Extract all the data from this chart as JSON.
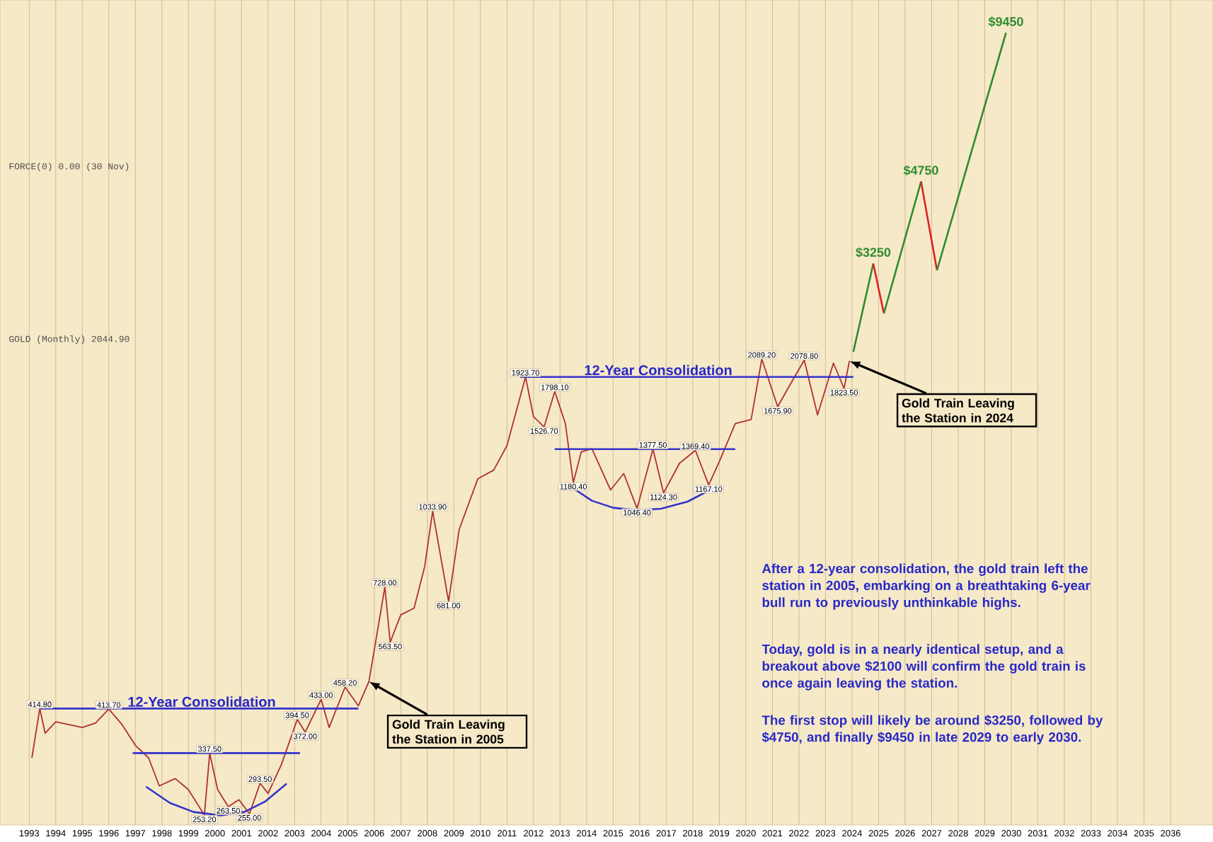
{
  "chart_data": {
    "type": "line",
    "log": true,
    "grid": "x",
    "tick_labels": "x",
    "xlim": [
      1991.9,
      2037.6
    ],
    "ylim": [
      242,
      11000
    ],
    "xticks": [
      1993,
      1994,
      1995,
      1996,
      1997,
      1998,
      1999,
      2000,
      2001,
      2002,
      2003,
      2004,
      2005,
      2006,
      2007,
      2008,
      2009,
      2010,
      2011,
      2012,
      2013,
      2014,
      2015,
      2016,
      2017,
      2018,
      2019,
      2020,
      2021,
      2022,
      2023,
      2024,
      2025,
      2026,
      2027,
      2028,
      2029,
      2030,
      2031,
      2032,
      2033,
      2034,
      2035,
      2036
    ],
    "series": [
      {
        "type": "line",
        "color": "#b03030",
        "x": [
          1993.1,
          1993.4,
          1993.6,
          1994.0,
          1994.5,
          1995.0,
          1995.5,
          1996.0,
          1996.5,
          1997.0,
          1997.5,
          1997.9,
          1998.5,
          1999.0,
          1999.6,
          1999.8,
          2000.1,
          2000.5,
          2000.9,
          2001.3,
          2001.7,
          2002.0,
          2002.5,
          2003.1,
          2003.4,
          2004.0,
          2004.3,
          2004.9,
          2005.4,
          2005.8,
          2006.4,
          2006.6,
          2007.0,
          2007.5,
          2007.9,
          2008.2,
          2008.8,
          2009.2,
          2009.9,
          2010.5,
          2011.0,
          2011.7,
          2012.0,
          2012.4,
          2012.8,
          2013.2,
          2013.5,
          2013.8,
          2014.2,
          2014.9,
          2015.4,
          2015.9,
          2016.5,
          2016.9,
          2017.5,
          2018.1,
          2018.6,
          2019.0,
          2019.6,
          2020.2,
          2020.6,
          2021.2,
          2021.6,
          2022.2,
          2022.7,
          2023.3,
          2023.7,
          2023.9
        ],
        "values": [
          330,
          414.8,
          370,
          390,
          385,
          380,
          388,
          413.7,
          385,
          350,
          330,
          290,
          300,
          285,
          253.2,
          337.5,
          285,
          263.5,
          272,
          255.0,
          293.5,
          280,
          320,
          394.5,
          372.0,
          433.0,
          380,
          458.2,
          420,
          470,
          728.0,
          563.5,
          640,
          660,
          800,
          1033.9,
          681.0,
          950,
          1200,
          1250,
          1400,
          1923.7,
          1600,
          1526.7,
          1798.1,
          1550,
          1180.4,
          1360,
          1380,
          1140,
          1230,
          1046.4,
          1377.5,
          1124.3,
          1290,
          1369.4,
          1167.1,
          1300,
          1550,
          1580,
          2089.2,
          1675.9,
          1830,
          2078.8,
          1614,
          2050,
          1823.5,
          2070
        ],
        "value_labels": [
          null,
          "414.80",
          null,
          null,
          null,
          null,
          null,
          "413.70",
          null,
          null,
          null,
          null,
          null,
          null,
          "253.20",
          "337.50",
          null,
          "263.50",
          null,
          "255.00",
          "293.50",
          null,
          null,
          "394.50",
          "372.00",
          "433.00",
          null,
          "458.20",
          null,
          null,
          "728.00",
          "563.50",
          null,
          null,
          null,
          "1033.90",
          "681.00",
          null,
          null,
          null,
          null,
          "1923.70",
          null,
          "1526.70",
          "1798.10",
          null,
          "1180.40",
          null,
          null,
          null,
          null,
          "1046.40",
          "1377.50",
          "1124.30",
          null,
          "1369.40",
          "1167.10",
          null,
          null,
          null,
          "2089.20",
          "1675.90",
          null,
          "2078.80",
          null,
          null,
          "1823.50",
          null
        ]
      },
      {
        "type": "line",
        "color": "#3333cc",
        "x": [
          1993.4,
          2005.4
        ],
        "values": [
          414.8,
          414.8
        ]
      },
      {
        "type": "line",
        "color": "#3333cc",
        "x": [
          1996.9,
          2003.2
        ],
        "values": [
          337.5,
          337.5
        ]
      },
      {
        "type": "line",
        "color": "#3333cc",
        "x": [
          2011.5,
          2024.05
        ],
        "values": [
          1923.7,
          1923.7
        ]
      },
      {
        "type": "line",
        "color": "#3333cc",
        "x": [
          2012.8,
          2019.6
        ],
        "values": [
          1377.5,
          1377.5
        ]
      },
      {
        "type": "line",
        "color": "#3333cc",
        "x": [
          1997.4,
          1998.3,
          1999.2,
          2000.2,
          2001.1,
          2001.9,
          2002.7
        ],
        "values": [
          289,
          268,
          257,
          253,
          257,
          270,
          293
        ]
      },
      {
        "type": "line",
        "color": "#3333cc",
        "x": [
          2013.4,
          2014.2,
          2015.0,
          2015.9,
          2016.8,
          2017.8,
          2018.9
        ],
        "values": [
          1158,
          1085,
          1050,
          1038,
          1045,
          1080,
          1158
        ]
      },
      {
        "type": "line",
        "color": "#2e8b2e",
        "x": [
          2024.05,
          2024.8
        ],
        "values": [
          2160,
          3250
        ],
        "value_labels": [
          null,
          "$3250"
        ]
      },
      {
        "type": "line",
        "color": "#e02020",
        "x": [
          2024.8,
          2025.2
        ],
        "values": [
          3250,
          2580
        ]
      },
      {
        "type": "line",
        "color": "#2e8b2e",
        "x": [
          2025.2,
          2026.6
        ],
        "values": [
          2580,
          4750
        ],
        "value_labels": [
          null,
          "$4750"
        ]
      },
      {
        "type": "line",
        "color": "#e02020",
        "x": [
          2026.6,
          2027.2
        ],
        "values": [
          4750,
          3150
        ]
      },
      {
        "type": "line",
        "color": "#2e8b2e",
        "x": [
          2027.2,
          2029.8
        ],
        "values": [
          3150,
          9450
        ],
        "value_labels": [
          null,
          "$9450"
        ]
      }
    ],
    "annotations": [
      "GOLD (Monthly) 2044.90",
      "FORCE(0) 0.00 (30 Nov)",
      {
        "text": "12-Year Consolidation",
        "x": 1999.5,
        "y": 414.8
      },
      {
        "text": "12-Year Consolidation",
        "x": 2016.7,
        "y": 1923.7
      },
      {
        "text": "Gold Train Leaving the Station in 2005",
        "x": 2005.8,
        "y": 470
      },
      {
        "text": "Gold Train Leaving the Station in 2024",
        "x": 2023.9,
        "y": 2070
      },
      "After a 12-year consolidation, the gold train left the station in 2005, embarking on a breathtaking 6-year bull run to previously unthinkable highs.",
      "Today, gold is in a nearly identical setup, and a breakout above $2100 will confirm the gold train is once again leaving the station.",
      "The first stop will likely be around $3250, followed by $4750, and finally $9450 in late 2029 to early 2030."
    ]
  }
}
